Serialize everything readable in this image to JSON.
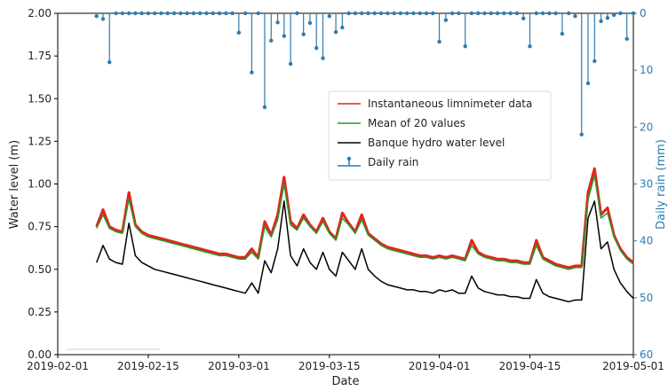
{
  "chart_data": {
    "type": "line",
    "xlabel": "Date",
    "ylabel": "Water level (m)",
    "y2label": "Daily rain (mm)",
    "x": [
      "2019-02-07",
      "2019-02-08",
      "2019-02-09",
      "2019-02-10",
      "2019-02-11",
      "2019-02-12",
      "2019-02-13",
      "2019-02-14",
      "2019-02-15",
      "2019-02-16",
      "2019-02-17",
      "2019-02-18",
      "2019-02-19",
      "2019-02-20",
      "2019-02-21",
      "2019-02-22",
      "2019-02-23",
      "2019-02-24",
      "2019-02-25",
      "2019-02-26",
      "2019-02-27",
      "2019-02-28",
      "2019-03-01",
      "2019-03-02",
      "2019-03-03",
      "2019-03-04",
      "2019-03-05",
      "2019-03-06",
      "2019-03-07",
      "2019-03-08",
      "2019-03-09",
      "2019-03-10",
      "2019-03-11",
      "2019-03-12",
      "2019-03-13",
      "2019-03-14",
      "2019-03-15",
      "2019-03-16",
      "2019-03-17",
      "2019-03-18",
      "2019-03-19",
      "2019-03-20",
      "2019-03-21",
      "2019-03-22",
      "2019-03-23",
      "2019-03-24",
      "2019-03-25",
      "2019-03-26",
      "2019-03-27",
      "2019-03-28",
      "2019-03-29",
      "2019-03-30",
      "2019-03-31",
      "2019-04-01",
      "2019-04-02",
      "2019-04-03",
      "2019-04-04",
      "2019-04-05",
      "2019-04-06",
      "2019-04-07",
      "2019-04-08",
      "2019-04-09",
      "2019-04-10",
      "2019-04-11",
      "2019-04-12",
      "2019-04-13",
      "2019-04-14",
      "2019-04-15",
      "2019-04-16",
      "2019-04-17",
      "2019-04-18",
      "2019-04-19",
      "2019-04-20",
      "2019-04-21",
      "2019-04-22",
      "2019-04-23",
      "2019-04-24",
      "2019-04-25",
      "2019-04-26",
      "2019-04-27",
      "2019-04-28",
      "2019-04-29",
      "2019-04-30",
      "2019-05-01"
    ],
    "series": [
      {
        "name": "Instantaneous limnimeter data",
        "color": "#e3241c",
        "kind": "line",
        "width": 3,
        "values": [
          0.75,
          0.85,
          0.75,
          0.73,
          0.72,
          0.95,
          0.76,
          0.72,
          0.7,
          0.69,
          0.68,
          0.67,
          0.66,
          0.65,
          0.64,
          0.63,
          0.62,
          0.61,
          0.6,
          0.59,
          0.59,
          0.58,
          0.57,
          0.57,
          0.62,
          0.57,
          0.78,
          0.7,
          0.82,
          1.04,
          0.78,
          0.74,
          0.82,
          0.76,
          0.72,
          0.8,
          0.72,
          0.68,
          0.83,
          0.77,
          0.72,
          0.82,
          0.71,
          0.68,
          0.65,
          0.63,
          0.62,
          0.61,
          0.6,
          0.59,
          0.58,
          0.58,
          0.57,
          0.58,
          0.57,
          0.58,
          0.57,
          0.56,
          0.67,
          0.6,
          0.58,
          0.57,
          0.56,
          0.56,
          0.55,
          0.55,
          0.54,
          0.54,
          0.67,
          0.57,
          0.55,
          0.53,
          0.52,
          0.51,
          0.52,
          0.52,
          0.95,
          1.09,
          0.82,
          0.86,
          0.7,
          0.62,
          0.57,
          0.54
        ]
      },
      {
        "name": "Mean of 20 values",
        "color": "#2a962a",
        "kind": "line",
        "width": 1.5,
        "values": [
          0.74,
          0.82,
          0.74,
          0.72,
          0.71,
          0.91,
          0.75,
          0.71,
          0.69,
          0.68,
          0.67,
          0.66,
          0.65,
          0.64,
          0.63,
          0.62,
          0.61,
          0.6,
          0.59,
          0.58,
          0.58,
          0.57,
          0.56,
          0.56,
          0.6,
          0.56,
          0.75,
          0.69,
          0.79,
          1.0,
          0.76,
          0.73,
          0.8,
          0.75,
          0.71,
          0.78,
          0.71,
          0.67,
          0.8,
          0.76,
          0.71,
          0.79,
          0.7,
          0.67,
          0.64,
          0.62,
          0.61,
          0.6,
          0.59,
          0.58,
          0.57,
          0.57,
          0.56,
          0.57,
          0.56,
          0.57,
          0.56,
          0.55,
          0.64,
          0.59,
          0.57,
          0.56,
          0.55,
          0.55,
          0.54,
          0.54,
          0.53,
          0.53,
          0.64,
          0.56,
          0.54,
          0.52,
          0.51,
          0.5,
          0.51,
          0.51,
          0.91,
          1.05,
          0.8,
          0.83,
          0.69,
          0.61,
          0.56,
          0.53
        ]
      },
      {
        "name": "Banque hydro water level",
        "color": "#000000",
        "kind": "line",
        "width": 1.5,
        "values": [
          0.54,
          0.64,
          0.56,
          0.54,
          0.53,
          0.77,
          0.58,
          0.54,
          0.52,
          0.5,
          0.49,
          0.48,
          0.47,
          0.46,
          0.45,
          0.44,
          0.43,
          0.42,
          0.41,
          0.4,
          0.39,
          0.38,
          0.37,
          0.36,
          0.42,
          0.36,
          0.55,
          0.48,
          0.62,
          0.9,
          0.58,
          0.52,
          0.62,
          0.54,
          0.5,
          0.6,
          0.5,
          0.46,
          0.6,
          0.55,
          0.5,
          0.62,
          0.5,
          0.46,
          0.43,
          0.41,
          0.4,
          0.39,
          0.38,
          0.38,
          0.37,
          0.37,
          0.36,
          0.38,
          0.37,
          0.38,
          0.36,
          0.36,
          0.46,
          0.39,
          0.37,
          0.36,
          0.35,
          0.35,
          0.34,
          0.34,
          0.33,
          0.33,
          0.44,
          0.36,
          0.34,
          0.33,
          0.32,
          0.31,
          0.32,
          0.32,
          0.8,
          0.9,
          0.62,
          0.66,
          0.5,
          0.42,
          0.37,
          0.33
        ]
      },
      {
        "name": "Daily rain",
        "color": "#2f7bb0",
        "kind": "stem",
        "axis": "y2",
        "values": [
          0.5,
          1,
          8.6,
          0,
          0,
          0,
          0,
          0,
          0,
          0,
          0,
          0,
          0,
          0,
          0,
          0,
          0,
          0,
          0,
          0,
          0,
          0,
          3.4,
          0,
          10.4,
          0,
          16.5,
          4.8,
          1.6,
          4,
          8.9,
          0,
          3.7,
          1.7,
          6.1,
          7.9,
          0.5,
          3.3,
          2.5,
          0,
          0,
          0,
          0,
          0,
          0,
          0,
          0,
          0,
          0,
          0,
          0,
          0,
          0,
          5,
          1.2,
          0,
          0,
          5.8,
          0,
          0,
          0,
          0,
          0,
          0,
          0,
          0,
          0.9,
          5.8,
          0,
          0,
          0,
          0,
          3.6,
          0,
          0.5,
          21.3,
          12.3,
          8.4,
          1.4,
          0.8,
          0.3,
          0,
          4.5,
          0
        ]
      }
    ],
    "xlim": [
      "2019-02-01",
      "2019-05-01"
    ],
    "xticks": [
      "2019-02-01",
      "2019-02-15",
      "2019-03-01",
      "2019-03-15",
      "2019-04-01",
      "2019-04-15",
      "2019-05-01"
    ],
    "ylim": [
      0,
      2
    ],
    "yticks": [
      {
        "value": 0,
        "label": "0.00"
      },
      {
        "value": 0.25,
        "label": "0.25"
      },
      {
        "value": 0.5,
        "label": "0.50"
      },
      {
        "value": 0.75,
        "label": "0.75"
      },
      {
        "value": 1,
        "label": "1.00"
      },
      {
        "value": 1.25,
        "label": "1.25"
      },
      {
        "value": 1.5,
        "label": "1.50"
      },
      {
        "value": 1.75,
        "label": "1.75"
      },
      {
        "value": 2,
        "label": "2.00"
      }
    ],
    "y2lim": [
      0,
      60
    ],
    "y2ticks": [
      0,
      10,
      20,
      30,
      40,
      50,
      60
    ],
    "y2_inverted": true,
    "y2_color": "#2f7bb0",
    "legend": "center"
  }
}
